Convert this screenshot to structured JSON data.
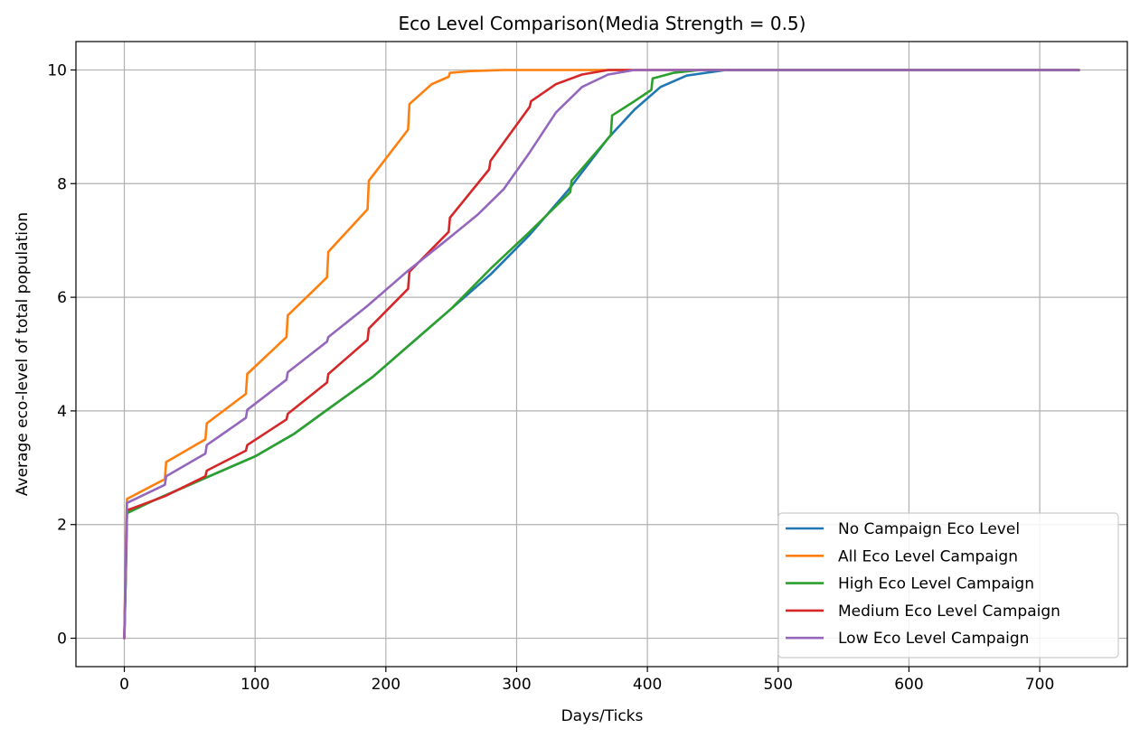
{
  "chart_data": {
    "type": "line",
    "title": "Eco Level Comparison(Media Strength = 0.5)",
    "xlabel": "Days/Ticks",
    "ylabel": "Average eco-level of total population",
    "xlim": [
      -37,
      767
    ],
    "ylim": [
      -0.5,
      10.5
    ],
    "xticks": [
      0,
      100,
      200,
      300,
      400,
      500,
      600,
      700
    ],
    "yticks": [
      0,
      2,
      4,
      6,
      8,
      10
    ],
    "grid": true,
    "legend_position": "lower-right",
    "series": [
      {
        "name": "No Campaign Eco Level",
        "color": "#1f77b4",
        "points": [
          [
            0,
            0
          ],
          [
            1,
            1.0
          ],
          [
            2,
            2.2
          ],
          [
            20,
            2.4
          ],
          [
            50,
            2.7
          ],
          [
            80,
            3.0
          ],
          [
            100,
            3.2
          ],
          [
            130,
            3.6
          ],
          [
            160,
            4.1
          ],
          [
            190,
            4.6
          ],
          [
            220,
            5.2
          ],
          [
            250,
            5.8
          ],
          [
            280,
            6.4
          ],
          [
            310,
            7.1
          ],
          [
            340,
            7.9
          ],
          [
            370,
            8.8
          ],
          [
            390,
            9.3
          ],
          [
            410,
            9.7
          ],
          [
            430,
            9.9
          ],
          [
            460,
            10.0
          ],
          [
            730,
            10.0
          ]
        ]
      },
      {
        "name": "All Eco Level Campaign",
        "color": "#ff7f0e",
        "points": [
          [
            0,
            0
          ],
          [
            1,
            1.5
          ],
          [
            2,
            2.45
          ],
          [
            31,
            2.8
          ],
          [
            32,
            3.1
          ],
          [
            62,
            3.5
          ],
          [
            63,
            3.78
          ],
          [
            93,
            4.3
          ],
          [
            94,
            4.65
          ],
          [
            124,
            5.3
          ],
          [
            125,
            5.68
          ],
          [
            155,
            6.35
          ],
          [
            156,
            6.8
          ],
          [
            186,
            7.55
          ],
          [
            187,
            8.05
          ],
          [
            217,
            8.95
          ],
          [
            218,
            9.4
          ],
          [
            235,
            9.75
          ],
          [
            248,
            9.88
          ],
          [
            249,
            9.95
          ],
          [
            265,
            9.98
          ],
          [
            290,
            10.0
          ],
          [
            730,
            10.0
          ]
        ]
      },
      {
        "name": "High Eco Level Campaign",
        "color": "#2ca02c",
        "points": [
          [
            0,
            0
          ],
          [
            1,
            1.0
          ],
          [
            2,
            2.2
          ],
          [
            20,
            2.4
          ],
          [
            50,
            2.7
          ],
          [
            80,
            3.0
          ],
          [
            100,
            3.2
          ],
          [
            130,
            3.6
          ],
          [
            160,
            4.1
          ],
          [
            190,
            4.6
          ],
          [
            220,
            5.2
          ],
          [
            250,
            5.8
          ],
          [
            280,
            6.5
          ],
          [
            310,
            7.15
          ],
          [
            341,
            7.85
          ],
          [
            342,
            8.05
          ],
          [
            372,
            8.85
          ],
          [
            373,
            9.2
          ],
          [
            390,
            9.45
          ],
          [
            403,
            9.65
          ],
          [
            404,
            9.85
          ],
          [
            420,
            9.95
          ],
          [
            440,
            10.0
          ],
          [
            730,
            10.0
          ]
        ]
      },
      {
        "name": "Medium Eco Level Campaign",
        "color": "#d62728",
        "points": [
          [
            0,
            0
          ],
          [
            1,
            1.1
          ],
          [
            2,
            2.25
          ],
          [
            31,
            2.5
          ],
          [
            62,
            2.85
          ],
          [
            63,
            2.95
          ],
          [
            93,
            3.3
          ],
          [
            94,
            3.4
          ],
          [
            124,
            3.85
          ],
          [
            125,
            3.95
          ],
          [
            155,
            4.5
          ],
          [
            156,
            4.65
          ],
          [
            186,
            5.25
          ],
          [
            187,
            5.45
          ],
          [
            217,
            6.15
          ],
          [
            218,
            6.45
          ],
          [
            248,
            7.15
          ],
          [
            249,
            7.4
          ],
          [
            279,
            8.25
          ],
          [
            280,
            8.4
          ],
          [
            310,
            9.35
          ],
          [
            311,
            9.45
          ],
          [
            330,
            9.75
          ],
          [
            350,
            9.92
          ],
          [
            370,
            10.0
          ],
          [
            730,
            10.0
          ]
        ]
      },
      {
        "name": "Low Eco Level Campaign",
        "color": "#9467bd",
        "points": [
          [
            0,
            0
          ],
          [
            1,
            1.3
          ],
          [
            2,
            2.38
          ],
          [
            31,
            2.7
          ],
          [
            32,
            2.85
          ],
          [
            62,
            3.25
          ],
          [
            63,
            3.4
          ],
          [
            93,
            3.88
          ],
          [
            94,
            4.02
          ],
          [
            124,
            4.55
          ],
          [
            125,
            4.68
          ],
          [
            155,
            5.22
          ],
          [
            156,
            5.3
          ],
          [
            186,
            5.85
          ],
          [
            216,
            6.45
          ],
          [
            246,
            7.0
          ],
          [
            270,
            7.45
          ],
          [
            290,
            7.9
          ],
          [
            310,
            8.55
          ],
          [
            330,
            9.25
          ],
          [
            350,
            9.7
          ],
          [
            370,
            9.92
          ],
          [
            390,
            10.0
          ],
          [
            730,
            10.0
          ]
        ]
      }
    ]
  }
}
